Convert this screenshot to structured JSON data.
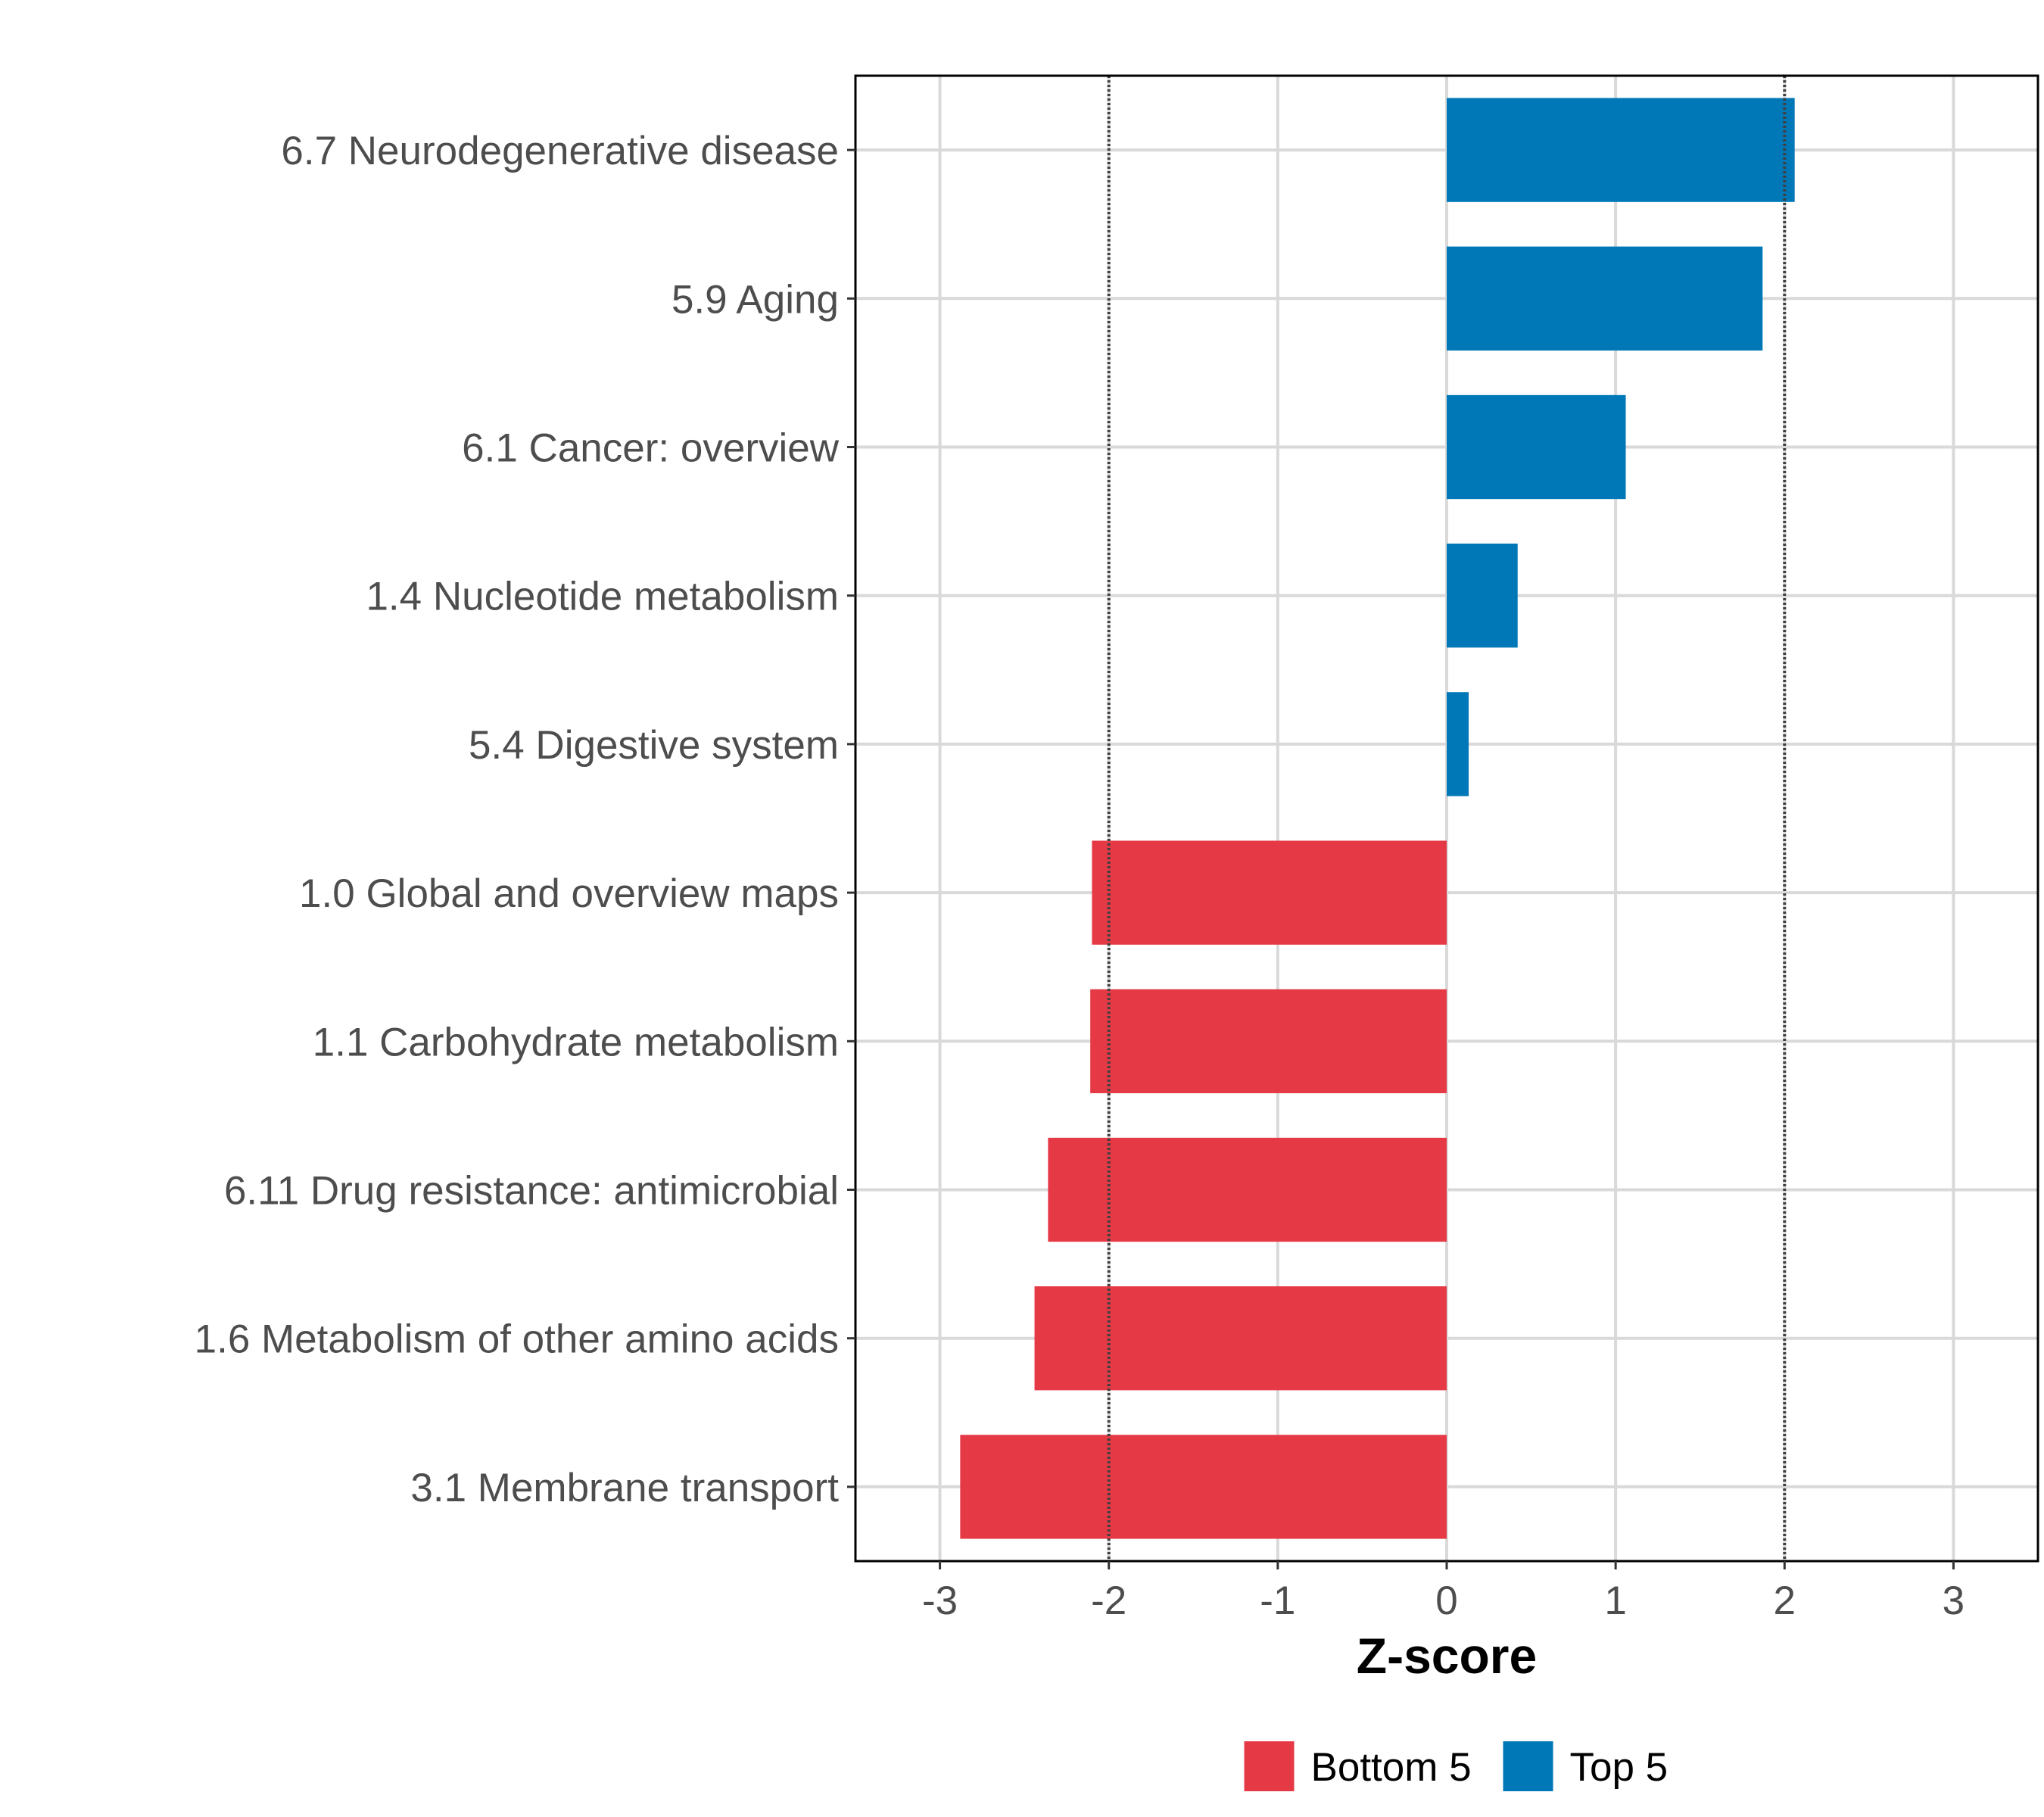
{
  "chart_data": {
    "type": "bar",
    "orientation": "horizontal",
    "title": "",
    "xlabel": "Z-score",
    "ylabel": "",
    "xlim": [
      -3.5,
      3.5
    ],
    "x_ticks": [
      -3,
      -2,
      -1,
      0,
      1,
      2,
      3
    ],
    "x_tick_labels": [
      "-3",
      "-2",
      "-1",
      "0",
      "1",
      "2",
      "3"
    ],
    "reference_lines": [
      -2,
      2
    ],
    "grid": true,
    "legend_position": "bottom",
    "categories": [
      "6.7 Neurodegenerative disease",
      "5.9 Aging",
      "6.1 Cancer: overview",
      "1.4 Nucleotide metabolism",
      "5.4 Digestive system",
      "1.0 Global and overview maps",
      "1.1 Carbohydrate metabolism",
      "6.11 Drug resistance: antimicrobial",
      "1.6 Metabolism of other amino acids",
      "3.1 Membrane transport"
    ],
    "values": [
      2.06,
      1.87,
      1.06,
      0.42,
      0.13,
      -2.1,
      -2.11,
      -2.36,
      -2.44,
      -2.88
    ],
    "groups": [
      "Top 5",
      "Top 5",
      "Top 5",
      "Top 5",
      "Top 5",
      "Bottom 5",
      "Bottom 5",
      "Bottom 5",
      "Bottom 5",
      "Bottom 5"
    ],
    "legend": [
      {
        "name": "Bottom 5",
        "color": "#E63946"
      },
      {
        "name": "Top 5",
        "color": "#0077B6"
      }
    ]
  }
}
